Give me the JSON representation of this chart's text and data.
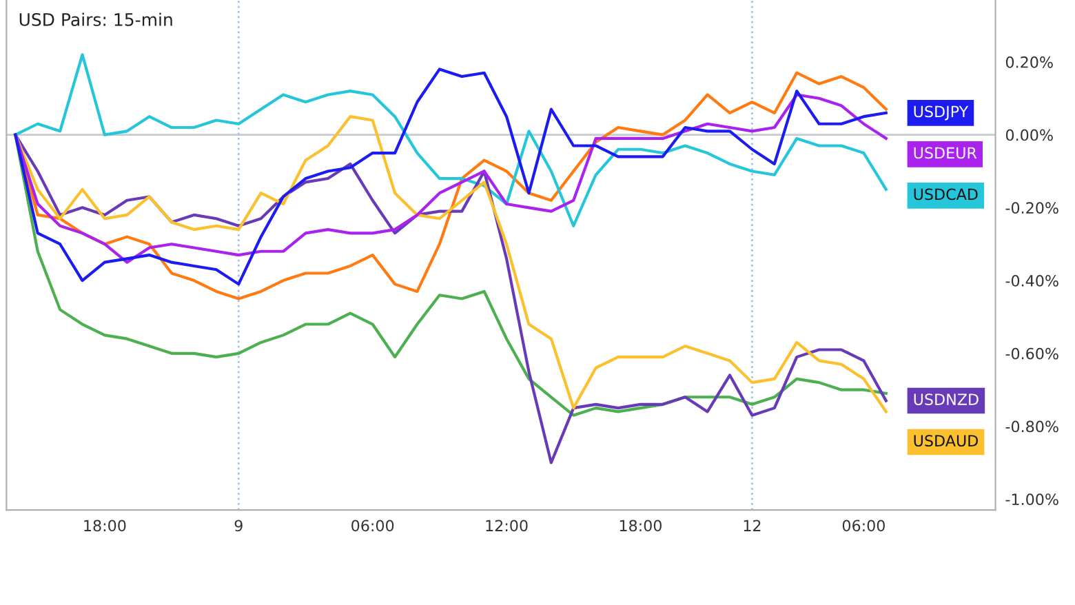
{
  "chart_data": {
    "type": "line",
    "title": "USD Pairs: 15-min",
    "categories": [
      null,
      null,
      null,
      null,
      "18:00",
      null,
      null,
      null,
      null,
      null,
      "9",
      null,
      null,
      null,
      null,
      null,
      "06:00",
      null,
      null,
      null,
      null,
      null,
      "12:00",
      null,
      null,
      null,
      null,
      null,
      "18:00",
      null,
      null,
      null,
      null,
      "12",
      null,
      null,
      null,
      null,
      "06:00",
      null
    ],
    "series": [
      {
        "color": "#4caf50",
        "values": [
          0,
          -0.32,
          -0.48,
          -0.52,
          -0.55,
          -0.56,
          -0.58,
          -0.6,
          -0.6,
          -0.61,
          -0.6,
          -0.57,
          -0.55,
          -0.52,
          -0.52,
          -0.49,
          -0.52,
          -0.61,
          -0.52,
          -0.44,
          -0.45,
          -0.43,
          -0.56,
          -0.67,
          -0.72,
          -0.77,
          -0.75,
          -0.76,
          -0.75,
          -0.74,
          -0.72,
          -0.72,
          -0.72,
          -0.74,
          -0.72,
          -0.67,
          -0.68,
          -0.7,
          -0.7,
          -0.71
        ]
      },
      {
        "color": "#ff7b11",
        "values": [
          0,
          -0.22,
          -0.23,
          -0.27,
          -0.3,
          -0.28,
          -0.3,
          -0.38,
          -0.4,
          -0.43,
          -0.45,
          -0.43,
          -0.4,
          -0.38,
          -0.38,
          -0.36,
          -0.33,
          -0.41,
          -0.43,
          -0.3,
          -0.12,
          -0.07,
          -0.1,
          -0.16,
          -0.18,
          -0.1,
          -0.02,
          0.02,
          0.01,
          0.0,
          0.04,
          0.11,
          0.06,
          0.09,
          0.06,
          0.17,
          0.14,
          0.16,
          0.13,
          0.07
        ]
      },
      {
        "name": "USDCAD",
        "color": "#26c6da",
        "values": [
          0,
          0.03,
          0.01,
          0.22,
          0.0,
          0.01,
          0.05,
          0.02,
          0.02,
          0.04,
          0.03,
          0.07,
          0.11,
          0.09,
          0.11,
          0.12,
          0.11,
          0.05,
          -0.05,
          -0.12,
          -0.12,
          -0.14,
          -0.19,
          0.01,
          -0.1,
          -0.25,
          -0.11,
          -0.04,
          -0.04,
          -0.05,
          -0.03,
          -0.05,
          -0.08,
          -0.1,
          -0.11,
          -0.01,
          -0.03,
          -0.03,
          -0.05,
          -0.15
        ]
      },
      {
        "name": "USDNZD",
        "color": "#673ab7",
        "values": [
          0,
          -0.1,
          -0.22,
          -0.2,
          -0.22,
          -0.18,
          -0.17,
          -0.24,
          -0.22,
          -0.23,
          -0.25,
          -0.23,
          -0.17,
          -0.13,
          -0.12,
          -0.08,
          -0.18,
          -0.27,
          -0.22,
          -0.21,
          -0.21,
          -0.1,
          -0.34,
          -0.65,
          -0.9,
          -0.75,
          -0.74,
          -0.75,
          -0.74,
          -0.74,
          -0.72,
          -0.76,
          -0.66,
          -0.77,
          -0.75,
          -0.61,
          -0.59,
          -0.59,
          -0.62,
          -0.73
        ]
      },
      {
        "name": "USDAUD",
        "color": "#fbc02d",
        "values": [
          0,
          -0.15,
          -0.23,
          -0.15,
          -0.23,
          -0.22,
          -0.17,
          -0.24,
          -0.26,
          -0.25,
          -0.26,
          -0.16,
          -0.19,
          -0.07,
          -0.03,
          0.05,
          0.04,
          -0.16,
          -0.22,
          -0.23,
          -0.18,
          -0.13,
          -0.3,
          -0.52,
          -0.56,
          -0.75,
          -0.64,
          -0.61,
          -0.61,
          -0.61,
          -0.58,
          -0.6,
          -0.62,
          -0.68,
          -0.67,
          -0.57,
          -0.62,
          -0.63,
          -0.67,
          -0.76
        ]
      },
      {
        "name": "USDEUR",
        "color": "#aa22ee",
        "values": [
          0,
          -0.19,
          -0.25,
          -0.27,
          -0.3,
          -0.35,
          -0.31,
          -0.3,
          -0.31,
          -0.32,
          -0.33,
          -0.32,
          -0.32,
          -0.27,
          -0.26,
          -0.27,
          -0.27,
          -0.26,
          -0.22,
          -0.16,
          -0.13,
          -0.1,
          -0.19,
          -0.2,
          -0.21,
          -0.18,
          -0.01,
          -0.01,
          -0.01,
          -0.01,
          0.01,
          0.03,
          0.02,
          0.01,
          0.02,
          0.11,
          0.1,
          0.08,
          0.03,
          -0.01
        ]
      },
      {
        "name": "USDJPY",
        "color": "#1c1cf0",
        "values": [
          0,
          -0.27,
          -0.3,
          -0.4,
          -0.35,
          -0.34,
          -0.33,
          -0.35,
          -0.36,
          -0.37,
          -0.41,
          -0.28,
          -0.17,
          -0.12,
          -0.1,
          -0.09,
          -0.05,
          -0.05,
          0.09,
          0.18,
          0.16,
          0.17,
          0.05,
          -0.16,
          0.07,
          -0.03,
          -0.03,
          -0.06,
          -0.06,
          -0.06,
          0.02,
          0.01,
          0.01,
          -0.04,
          -0.08,
          0.12,
          0.03,
          0.03,
          0.05,
          0.06
        ]
      }
    ],
    "ylim": [
      -1.03,
      0.37
    ],
    "yticks": [
      {
        "value": 0.2,
        "label": "0.20%"
      },
      {
        "value": 0,
        "label": "0.00%"
      },
      {
        "value": -0.2,
        "label": "-0.20%"
      },
      {
        "value": -0.4,
        "label": "-0.40%"
      },
      {
        "value": -0.6,
        "label": "-0.60%"
      },
      {
        "value": -0.8,
        "label": "-0.80%"
      },
      {
        "value": -1.0,
        "label": "-1.00%"
      }
    ],
    "ref_lines": [
      {
        "axis": "y",
        "value": 0,
        "color": "#c8cad2",
        "line_style": "solid"
      },
      {
        "axis": "x",
        "value": "9",
        "color": "#9cc3f0",
        "line_style": "dotted"
      },
      {
        "axis": "x",
        "value": "12",
        "color": "#9cc3f0",
        "line_style": "dotted"
      }
    ],
    "grid": false,
    "legend": "right",
    "marker": "none",
    "line_style": "solid"
  }
}
